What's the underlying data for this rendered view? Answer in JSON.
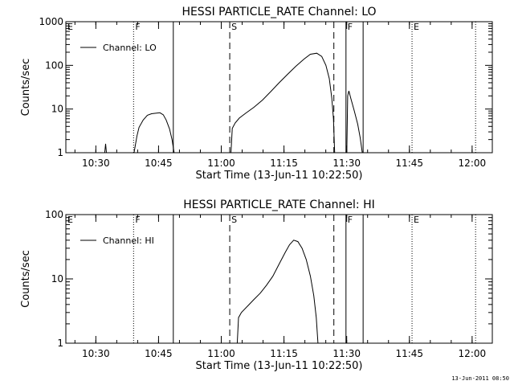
{
  "footer_timestamp": "13-Jun-2011 08:50",
  "chart_data": [
    {
      "type": "line",
      "title": "HESSI PARTICLE_RATE Channel: LO",
      "xlabel": "Start Time (13-Jun-11 10:22:50)",
      "ylabel": "Counts/sec",
      "y_scale": "log",
      "x_unit": "minutes after 10:22:50",
      "xlim": [
        0,
        102
      ],
      "ylim": [
        1,
        1000
      ],
      "x_ticks": [
        {
          "label": "10:30",
          "value": 7.17
        },
        {
          "label": "10:45",
          "value": 22.17
        },
        {
          "label": "11:00",
          "value": 37.17
        },
        {
          "label": "11:15",
          "value": 52.17
        },
        {
          "label": "11:30",
          "value": 67.17
        },
        {
          "label": "11:45",
          "value": 82.17
        },
        {
          "label": "12:00",
          "value": 97.17
        }
      ],
      "y_ticks": [
        {
          "label": "1",
          "value": 1
        },
        {
          "label": "10",
          "value": 10
        },
        {
          "label": "100",
          "value": 100
        },
        {
          "label": "1000",
          "value": 1000
        }
      ],
      "legend": {
        "label": "Channel: LO",
        "position": "top-left"
      },
      "series": [
        {
          "name": "Channel: LO",
          "segments": [
            [
              [
                9.3,
                1.0
              ],
              [
                9.5,
                1.6
              ],
              [
                9.7,
                1.0
              ]
            ],
            [
              [
                16.3,
                1.0
              ],
              [
                17.0,
                2.4
              ],
              [
                17.5,
                3.8
              ],
              [
                18.5,
                5.6
              ],
              [
                19.5,
                7.2
              ],
              [
                20.5,
                7.8
              ],
              [
                21.5,
                8.0
              ],
              [
                22.5,
                8.2
              ],
              [
                23.3,
                7.4
              ],
              [
                24.0,
                5.6
              ],
              [
                24.8,
                3.5
              ],
              [
                25.4,
                2.0
              ],
              [
                25.9,
                1.0
              ]
            ],
            [
              [
                39.5,
                1.0
              ],
              [
                39.8,
                3.6
              ],
              [
                40.5,
                4.8
              ],
              [
                41.5,
                6.2
              ],
              [
                43.0,
                8.0
              ],
              [
                45.0,
                11.0
              ],
              [
                47.0,
                16.0
              ],
              [
                49.0,
                25.0
              ],
              [
                51.0,
                40.0
              ],
              [
                53.0,
                62.0
              ],
              [
                55.0,
                95.0
              ],
              [
                57.0,
                140.0
              ],
              [
                58.5,
                180.0
              ],
              [
                60.0,
                190.0
              ],
              [
                61.2,
                160.0
              ],
              [
                62.2,
                100.0
              ],
              [
                63.0,
                50.0
              ],
              [
                63.6,
                18.0
              ],
              [
                64.0,
                6.0
              ],
              [
                64.3,
                1.0
              ]
            ],
            [
              [
                67.2,
                1.0
              ],
              [
                67.4,
                20.0
              ],
              [
                67.7,
                26.0
              ],
              [
                68.2,
                17.0
              ],
              [
                69.0,
                9.0
              ],
              [
                69.8,
                4.5
              ],
              [
                70.4,
                2.2
              ],
              [
                70.9,
                1.0
              ]
            ]
          ]
        }
      ],
      "markers": [
        {
          "label": "E",
          "value": 0.0,
          "style": "dotted",
          "color": "#000000"
        },
        {
          "label": "F",
          "value": 16.2,
          "style": "dotted",
          "color": "#000000"
        },
        {
          "label": "",
          "value": 25.7,
          "style": "solid",
          "color": "#000000"
        },
        {
          "label": "S",
          "value": 39.2,
          "style": "dashed",
          "color": "#000000"
        },
        {
          "label": "",
          "value": 64.1,
          "style": "dashed",
          "color": "#000000"
        },
        {
          "label": "F",
          "value": 67.0,
          "style": "solid",
          "color": "#000000"
        },
        {
          "label": "",
          "value": 71.1,
          "style": "solid",
          "color": "#000000"
        },
        {
          "label": "E",
          "value": 82.8,
          "style": "dotted",
          "color": "#000000"
        },
        {
          "label": "",
          "value": 98.0,
          "style": "dotted",
          "color": "#000000"
        }
      ]
    },
    {
      "type": "line",
      "title": "HESSI PARTICLE_RATE Channel: HI",
      "xlabel": "Start Time (13-Jun-11 10:22:50)",
      "ylabel": "Counts/sec",
      "y_scale": "log",
      "x_unit": "minutes after 10:22:50",
      "xlim": [
        0,
        102
      ],
      "ylim": [
        1,
        100
      ],
      "x_ticks": [
        {
          "label": "10:30",
          "value": 7.17
        },
        {
          "label": "10:45",
          "value": 22.17
        },
        {
          "label": "11:00",
          "value": 37.17
        },
        {
          "label": "11:15",
          "value": 52.17
        },
        {
          "label": "11:30",
          "value": 67.17
        },
        {
          "label": "11:45",
          "value": 82.17
        },
        {
          "label": "12:00",
          "value": 97.17
        }
      ],
      "y_ticks": [
        {
          "label": "1",
          "value": 1
        },
        {
          "label": "10",
          "value": 10
        },
        {
          "label": "100",
          "value": 100
        }
      ],
      "legend": {
        "label": "Channel: HI",
        "position": "top-left"
      },
      "series": [
        {
          "name": "Channel: HI",
          "segments": [
            [
              [
                41.0,
                1.0
              ],
              [
                41.3,
                2.5
              ],
              [
                42.0,
                3.0
              ],
              [
                43.5,
                3.8
              ],
              [
                45.0,
                4.8
              ],
              [
                46.5,
                6.0
              ],
              [
                48.0,
                8.0
              ],
              [
                49.5,
                11.0
              ],
              [
                51.0,
                17.0
              ],
              [
                52.5,
                26.0
              ],
              [
                53.5,
                34.0
              ],
              [
                54.5,
                40.0
              ],
              [
                55.5,
                38.0
              ],
              [
                56.5,
                30.0
              ],
              [
                57.5,
                20.0
              ],
              [
                58.5,
                11.0
              ],
              [
                59.3,
                5.5
              ],
              [
                59.9,
                2.5
              ],
              [
                60.3,
                1.0
              ]
            ]
          ]
        }
      ],
      "markers": [
        {
          "label": "E",
          "value": 0.0,
          "style": "dotted",
          "color": "#000000"
        },
        {
          "label": "F",
          "value": 16.2,
          "style": "dotted",
          "color": "#000000"
        },
        {
          "label": "",
          "value": 25.7,
          "style": "solid",
          "color": "#000000"
        },
        {
          "label": "S",
          "value": 39.2,
          "style": "dashed",
          "color": "#000000"
        },
        {
          "label": "",
          "value": 64.1,
          "style": "dashed",
          "color": "#000000"
        },
        {
          "label": "F",
          "value": 67.0,
          "style": "solid",
          "color": "#000000"
        },
        {
          "label": "",
          "value": 71.1,
          "style": "solid",
          "color": "#000000"
        },
        {
          "label": "E",
          "value": 82.8,
          "style": "dotted",
          "color": "#000000"
        },
        {
          "label": "",
          "value": 98.0,
          "style": "dotted",
          "color": "#000000"
        }
      ]
    }
  ]
}
